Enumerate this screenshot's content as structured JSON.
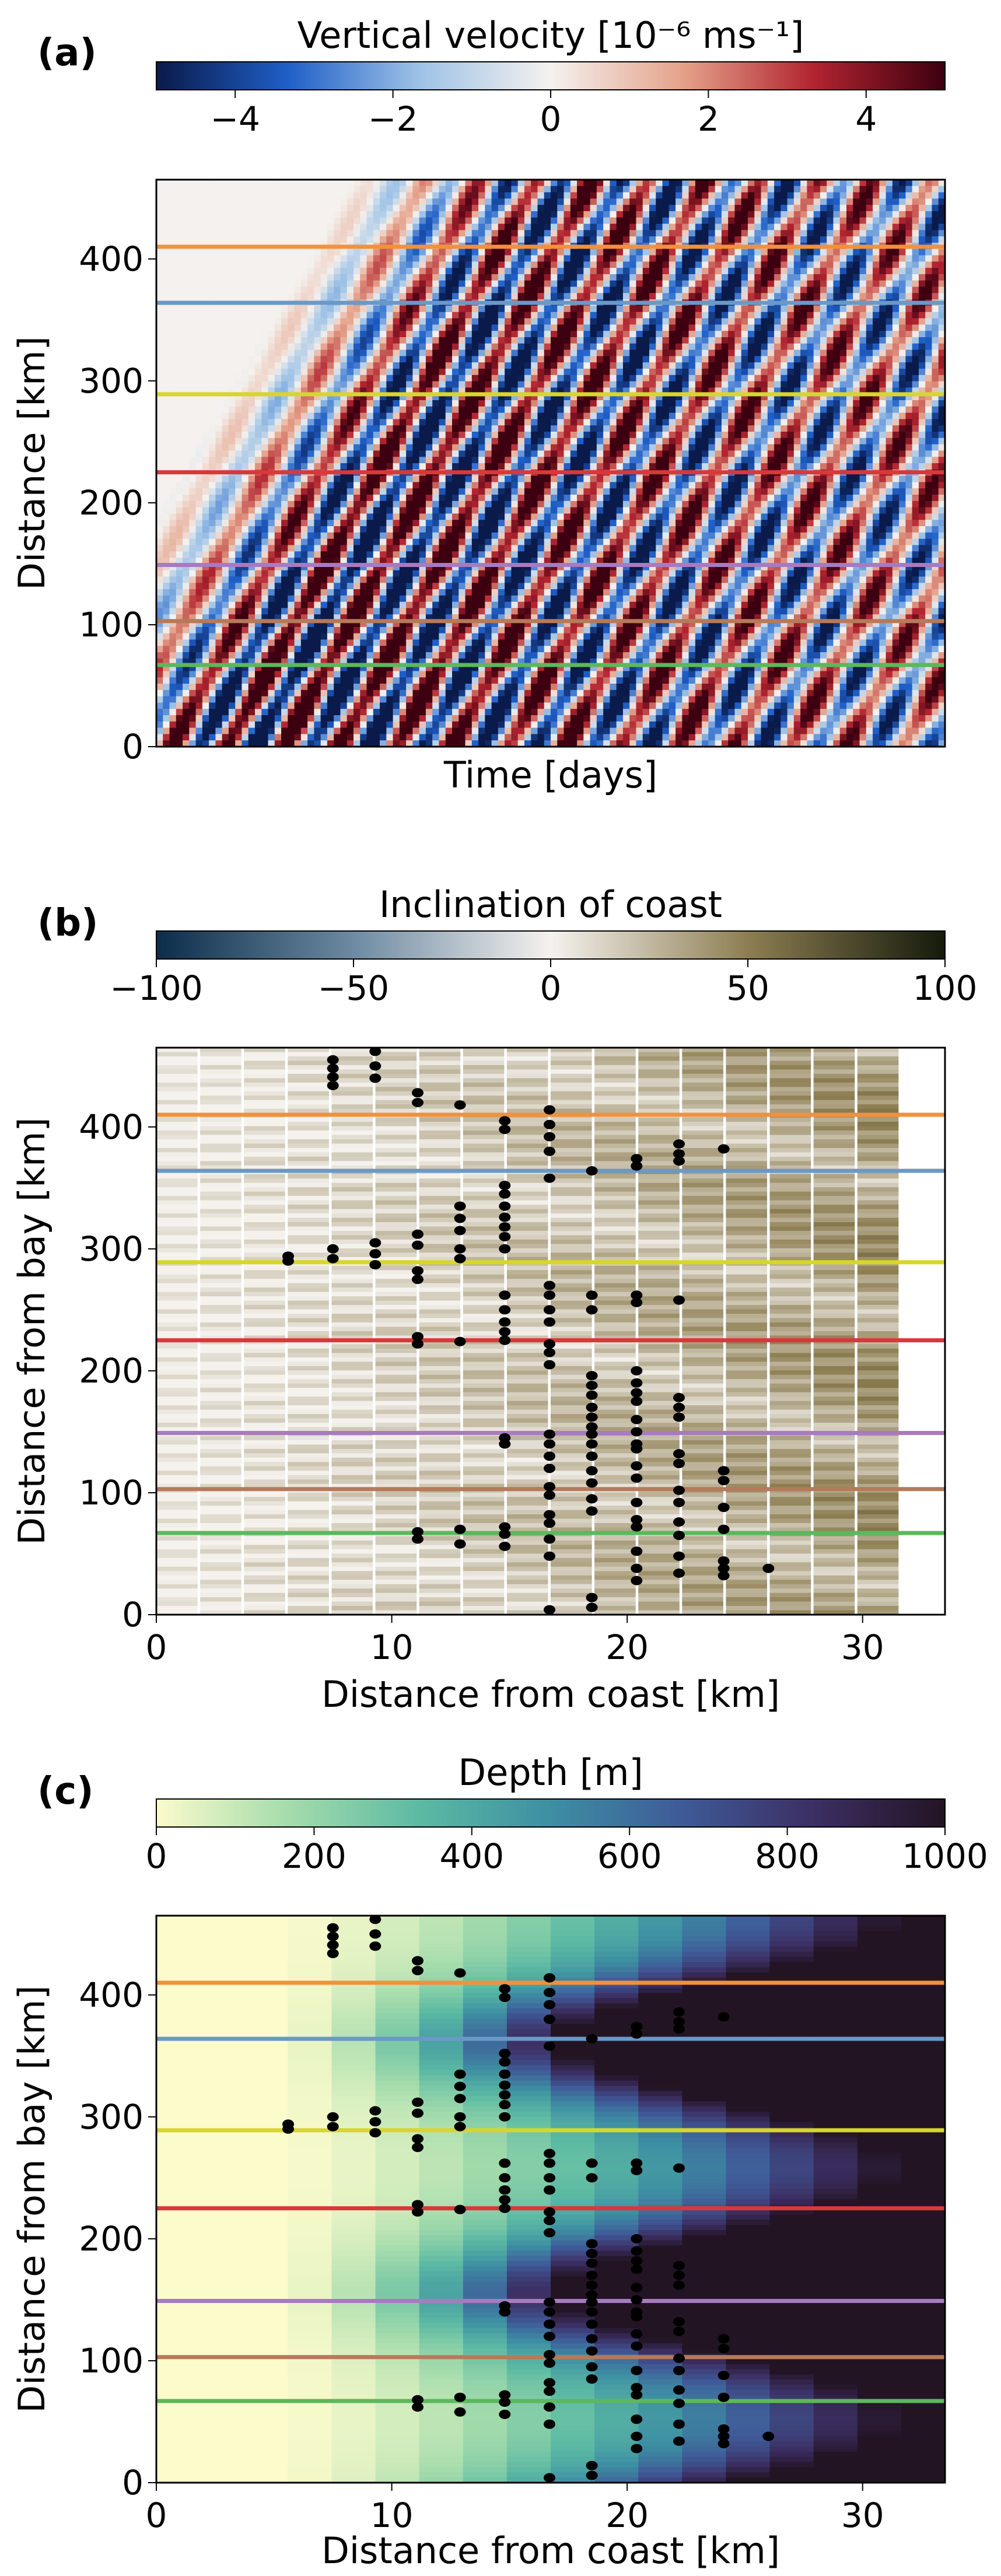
{
  "colors": {
    "section_lines": [
      "#f2913b",
      "#6a99c6",
      "#d7d62c",
      "#d9383a",
      "#a77bbf",
      "#b57a5a",
      "#5cb85c"
    ],
    "velocity_cmap": [
      "#0a1a4a",
      "#1f5fc8",
      "#9ec2e6",
      "#f4f1ee",
      "#e5a28a",
      "#b22430",
      "#3d0010"
    ],
    "inclination_cmap": [
      "#0c2d4a",
      "#6d8aa2",
      "#f5f2ee",
      "#8d7e52",
      "#151a0c"
    ],
    "depth_cmap": [
      "#fbfbcc",
      "#a5dcac",
      "#5cbaa3",
      "#3d8fa3",
      "#3f5a98",
      "#3c2f63",
      "#231424"
    ]
  },
  "chart_data": [
    {
      "panel": "(a)",
      "type": "heatmap",
      "colorbar_label": "Vertical velocity  [10⁻⁶ ms⁻¹]",
      "colorbar_ticks": [
        "−4",
        "−2",
        "0",
        "2",
        "4"
      ],
      "colorbar_range": [
        -5,
        5
      ],
      "xlabel": "Time [days]",
      "ylabel": "Distance [km]",
      "ylim": [
        0,
        465
      ],
      "yticks": [
        "0",
        "100",
        "200",
        "300",
        "400"
      ],
      "section_lines_km": [
        410,
        364,
        289,
        225,
        149,
        103,
        67
      ]
    },
    {
      "panel": "(b)",
      "type": "heatmap",
      "colorbar_label": "Inclination of coast",
      "colorbar_ticks": [
        "−100",
        "−50",
        "0",
        "50",
        "100"
      ],
      "colorbar_range": [
        -100,
        100
      ],
      "xlabel": "Distance from coast [km]",
      "ylabel": "Distance from bay [km]",
      "xlim": [
        0,
        33.5
      ],
      "ylim": [
        0,
        465
      ],
      "xticks": [
        "0",
        "10",
        "20",
        "30"
      ],
      "yticks": [
        "0",
        "100",
        "200",
        "300",
        "400"
      ],
      "section_lines_km": [
        410,
        364,
        289,
        225,
        149,
        103,
        67
      ]
    },
    {
      "panel": "(c)",
      "type": "heatmap",
      "colorbar_label": "Depth [m]",
      "colorbar_ticks": [
        "0",
        "200",
        "400",
        "600",
        "800",
        "1000"
      ],
      "colorbar_range": [
        0,
        1000
      ],
      "xlabel": "Distance from coast [km]",
      "ylabel": "Distance from bay [km]",
      "xlim": [
        0,
        33.5
      ],
      "ylim": [
        0,
        465
      ],
      "xticks": [
        "0",
        "10",
        "20",
        "30"
      ],
      "yticks": [
        "0",
        "100",
        "200",
        "300",
        "400"
      ],
      "section_lines_km": [
        410,
        364,
        289,
        225,
        149,
        103,
        67
      ]
    }
  ],
  "marker_points": [
    [
      7.5,
      455
    ],
    [
      7.5,
      448
    ],
    [
      7.5,
      441
    ],
    [
      7.5,
      434
    ],
    [
      9.3,
      462
    ],
    [
      9.3,
      450
    ],
    [
      9.3,
      440
    ],
    [
      11.1,
      428
    ],
    [
      11.1,
      420
    ],
    [
      12.9,
      418
    ],
    [
      14.8,
      405
    ],
    [
      14.8,
      398
    ],
    [
      16.7,
      414
    ],
    [
      16.7,
      402
    ],
    [
      16.7,
      392
    ],
    [
      16.7,
      380
    ],
    [
      16.7,
      358
    ],
    [
      18.5,
      364
    ],
    [
      20.4,
      374
    ],
    [
      20.4,
      368
    ],
    [
      22.2,
      386
    ],
    [
      22.2,
      378
    ],
    [
      22.2,
      372
    ],
    [
      24.1,
      382
    ],
    [
      5.6,
      294
    ],
    [
      5.6,
      290
    ],
    [
      7.5,
      300
    ],
    [
      7.5,
      292
    ],
    [
      9.3,
      305
    ],
    [
      9.3,
      296
    ],
    [
      9.3,
      287
    ],
    [
      11.1,
      312
    ],
    [
      11.1,
      303
    ],
    [
      11.1,
      282
    ],
    [
      11.1,
      275
    ],
    [
      12.9,
      335
    ],
    [
      12.9,
      325
    ],
    [
      12.9,
      315
    ],
    [
      12.9,
      300
    ],
    [
      12.9,
      292
    ],
    [
      14.8,
      352
    ],
    [
      14.8,
      345
    ],
    [
      14.8,
      335
    ],
    [
      14.8,
      326
    ],
    [
      14.8,
      318
    ],
    [
      14.8,
      310
    ],
    [
      14.8,
      300
    ],
    [
      14.8,
      262
    ],
    [
      14.8,
      250
    ],
    [
      14.8,
      240
    ],
    [
      14.8,
      232
    ],
    [
      14.8,
      225
    ],
    [
      16.7,
      270
    ],
    [
      16.7,
      262
    ],
    [
      16.7,
      250
    ],
    [
      16.7,
      240
    ],
    [
      16.7,
      222
    ],
    [
      16.7,
      215
    ],
    [
      16.7,
      205
    ],
    [
      18.5,
      262
    ],
    [
      18.5,
      250
    ],
    [
      18.5,
      196
    ],
    [
      18.5,
      188
    ],
    [
      18.5,
      180
    ],
    [
      18.5,
      170
    ],
    [
      18.5,
      162
    ],
    [
      18.5,
      154
    ],
    [
      20.4,
      262
    ],
    [
      20.4,
      256
    ],
    [
      20.4,
      200
    ],
    [
      20.4,
      190
    ],
    [
      20.4,
      182
    ],
    [
      20.4,
      175
    ],
    [
      20.4,
      160
    ],
    [
      20.4,
      150
    ],
    [
      20.4,
      140
    ],
    [
      22.2,
      258
    ],
    [
      22.2,
      178
    ],
    [
      22.2,
      170
    ],
    [
      22.2,
      162
    ],
    [
      22.2,
      132
    ],
    [
      22.2,
      124
    ],
    [
      11.1,
      228
    ],
    [
      11.1,
      222
    ],
    [
      12.9,
      224
    ],
    [
      14.8,
      145
    ],
    [
      14.8,
      140
    ],
    [
      16.7,
      148
    ],
    [
      16.7,
      140
    ],
    [
      16.7,
      130
    ],
    [
      16.7,
      120
    ],
    [
      16.7,
      105
    ],
    [
      16.7,
      98
    ],
    [
      16.7,
      82
    ],
    [
      16.7,
      75
    ],
    [
      16.7,
      62
    ],
    [
      16.7,
      48
    ],
    [
      18.5,
      148
    ],
    [
      18.5,
      140
    ],
    [
      18.5,
      130
    ],
    [
      18.5,
      118
    ],
    [
      18.5,
      108
    ],
    [
      18.5,
      95
    ],
    [
      18.5,
      85
    ],
    [
      20.4,
      136
    ],
    [
      20.4,
      122
    ],
    [
      20.4,
      112
    ],
    [
      20.4,
      92
    ],
    [
      20.4,
      78
    ],
    [
      20.4,
      72
    ],
    [
      20.4,
      52
    ],
    [
      20.4,
      38
    ],
    [
      20.4,
      28
    ],
    [
      22.2,
      102
    ],
    [
      22.2,
      92
    ],
    [
      22.2,
      76
    ],
    [
      22.2,
      65
    ],
    [
      22.2,
      48
    ],
    [
      22.2,
      34
    ],
    [
      24.1,
      118
    ],
    [
      24.1,
      110
    ],
    [
      24.1,
      88
    ],
    [
      24.1,
      70
    ],
    [
      24.1,
      44
    ],
    [
      24.1,
      38
    ],
    [
      24.1,
      32
    ],
    [
      26.0,
      38
    ],
    [
      11.1,
      68
    ],
    [
      11.1,
      62
    ],
    [
      12.9,
      70
    ],
    [
      12.9,
      58
    ],
    [
      14.8,
      72
    ],
    [
      14.8,
      66
    ],
    [
      14.8,
      56
    ],
    [
      18.5,
      14
    ],
    [
      18.5,
      6
    ],
    [
      16.7,
      4
    ]
  ]
}
